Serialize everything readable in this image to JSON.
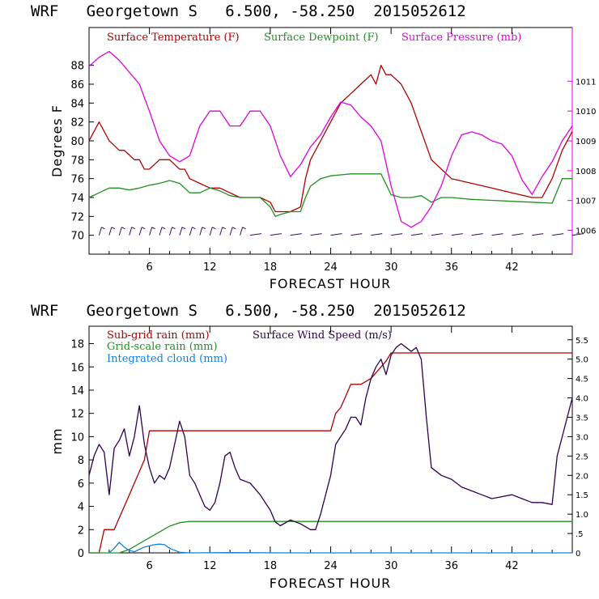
{
  "chart_data": [
    {
      "type": "line",
      "title": "WRF   Georgetown S   6.500, -58.250  2015052612",
      "xlabel": "FORECAST HOUR",
      "ylabel": "Degrees F",
      "xlim": [
        0,
        48
      ],
      "ylim": [
        68,
        92
      ],
      "y2lim": [
        1005.2,
        1012.8
      ],
      "x_ticks": [
        6,
        12,
        18,
        24,
        30,
        36,
        42
      ],
      "y_ticks": [
        70,
        72,
        74,
        76,
        78,
        80,
        82,
        84,
        86,
        88
      ],
      "y2_ticks": [
        1006,
        1007,
        1008,
        1009,
        1010,
        1011
      ],
      "legend_placement": "top",
      "series": [
        {
          "name": "Surface Temperature (F)",
          "color": "#b00000",
          "axis": "left",
          "x": [
            0,
            0.5,
            1,
            1.5,
            2,
            2.5,
            3,
            3.5,
            4,
            4.5,
            5,
            5.5,
            6,
            6.5,
            7,
            7.5,
            8,
            8.5,
            9,
            9.5,
            10,
            11,
            12,
            13,
            14,
            15,
            16,
            17,
            18,
            18.5,
            19,
            20,
            21,
            21.5,
            22,
            23,
            24,
            25,
            26,
            27,
            28,
            28.5,
            29,
            29.5,
            30,
            31,
            32,
            33,
            34,
            35,
            36,
            38,
            40,
            42,
            44,
            45,
            46,
            47,
            48
          ],
          "values": [
            80,
            81,
            82,
            81,
            80,
            79.5,
            79,
            79,
            78.5,
            78,
            78,
            77,
            77,
            77.5,
            78,
            78,
            78,
            77.5,
            77,
            77,
            76,
            75.5,
            75,
            75,
            74.5,
            74,
            74,
            74,
            73.5,
            72.5,
            72.5,
            72.5,
            73,
            76,
            78,
            80,
            82,
            84,
            85,
            86,
            87,
            86,
            88,
            87,
            87,
            86,
            84,
            81,
            78,
            77,
            76,
            75.5,
            75,
            74.5,
            74,
            74,
            76,
            79,
            81
          ]
        },
        {
          "name": "Surface Dewpoint (F)",
          "color": "#209020",
          "axis": "left",
          "x": [
            0,
            1,
            2,
            3,
            4,
            5,
            6,
            7,
            8,
            9,
            10,
            11,
            12,
            13,
            14,
            15,
            16,
            17,
            18,
            18.5,
            19,
            20,
            21,
            21.5,
            22,
            23,
            24,
            25,
            26,
            27,
            28,
            29,
            30,
            31,
            32,
            33,
            34,
            35,
            36,
            38,
            40,
            42,
            44,
            46,
            47,
            48
          ],
          "values": [
            74,
            74.5,
            75,
            75,
            74.8,
            75,
            75.3,
            75.5,
            75.8,
            75.5,
            74.5,
            74.5,
            75,
            74.7,
            74.2,
            74,
            74,
            74,
            73,
            72,
            72.2,
            72.5,
            72.5,
            74,
            75.2,
            76,
            76.3,
            76.4,
            76.5,
            76.5,
            76.5,
            76.5,
            74.3,
            74,
            74,
            74.2,
            73.5,
            74,
            74,
            73.8,
            73.7,
            73.6,
            73.5,
            73.4,
            76,
            76
          ]
        },
        {
          "name": "Surface Pressure (mb)",
          "color": "#e000e0",
          "axis": "right",
          "x": [
            0,
            1,
            2,
            3,
            4,
            5,
            6,
            7,
            8,
            9,
            10,
            11,
            12,
            13,
            14,
            15,
            16,
            17,
            18,
            19,
            20,
            21,
            22,
            23,
            24,
            25,
            26,
            27,
            28,
            29,
            30,
            31,
            32,
            33,
            34,
            35,
            36,
            37,
            38,
            39,
            40,
            41,
            42,
            43,
            44,
            45,
            46,
            47,
            48
          ],
          "values": [
            1011.5,
            1011.8,
            1012,
            1011.7,
            1011.3,
            1010.9,
            1010,
            1009,
            1008.5,
            1008.3,
            1008.5,
            1009.5,
            1010,
            1010,
            1009.5,
            1009.5,
            1010,
            1010,
            1009.5,
            1008.5,
            1007.8,
            1008.2,
            1008.8,
            1009.2,
            1009.8,
            1010.3,
            1010.2,
            1009.8,
            1009.5,
            1009,
            1007.5,
            1006.3,
            1006.1,
            1006.3,
            1006.8,
            1007.5,
            1008.5,
            1009.2,
            1009.3,
            1009.2,
            1009,
            1008.9,
            1008.5,
            1007.7,
            1007.2,
            1007.8,
            1008.3,
            1009,
            1009.5
          ]
        },
        {
          "name": "wind barbs",
          "color": "#3a0a5a",
          "axis": "left",
          "x": [
            1,
            2,
            3,
            4,
            5,
            6,
            7,
            8,
            9,
            10,
            11,
            12,
            13,
            14,
            15,
            16,
            18,
            20,
            22,
            24,
            26,
            28,
            30,
            32,
            34,
            36,
            38,
            40,
            42,
            44,
            46,
            48
          ],
          "values": [
            70,
            70,
            70,
            70,
            70,
            70,
            70,
            70,
            70,
            70,
            70,
            70,
            70,
            70,
            70,
            70,
            70,
            70,
            70,
            70,
            70,
            70,
            70,
            70,
            70,
            70,
            70,
            70,
            70,
            70,
            70,
            70
          ]
        }
      ]
    },
    {
      "type": "line",
      "title": "WRF   Georgetown S   6.500, -58.250  2015052612",
      "xlabel": "FORECAST HOUR",
      "ylabel": "mm",
      "xlim": [
        0,
        48
      ],
      "ylim": [
        0,
        19.5
      ],
      "y2lim": [
        0,
        5.85
      ],
      "x_ticks": [
        6,
        12,
        18,
        24,
        30,
        36,
        42
      ],
      "y_ticks": [
        0,
        2,
        4,
        6,
        8,
        10,
        12,
        14,
        16,
        18
      ],
      "y2_ticks": [
        0,
        0.5,
        1.0,
        1.5,
        2.0,
        2.5,
        3.0,
        3.5,
        4.0,
        4.5,
        5.0,
        5.5
      ],
      "y2_tick_labels": [
        "0",
        ".5",
        "1.0",
        "1.5",
        "2.0",
        "2.5",
        "3.0",
        "3.5",
        "4.0",
        "4.5",
        "5.0",
        "5.5"
      ],
      "legend_placement": "top-left",
      "series": [
        {
          "name": "Sub-grid rain (mm)",
          "color": "#b00000",
          "axis": "left",
          "x": [
            0,
            1,
            1.5,
            2.5,
            3,
            3.5,
            4,
            4.5,
            5,
            5.5,
            6,
            24,
            24.5,
            25,
            25.5,
            26,
            27,
            28,
            28.5,
            29,
            29.5,
            30,
            48
          ],
          "values": [
            0,
            0,
            2,
            2,
            3,
            4,
            5,
            6,
            7,
            8,
            10.5,
            10.5,
            12,
            12.5,
            13.5,
            14.5,
            14.5,
            15,
            15.5,
            16,
            16.5,
            17.2,
            17.2
          ]
        },
        {
          "name": "Grid-scale rain (mm)",
          "color": "#209020",
          "axis": "left",
          "x": [
            0,
            3,
            4,
            5,
            6,
            7,
            8,
            9,
            10,
            12,
            48
          ],
          "values": [
            0,
            0,
            0.3,
            0.8,
            1.3,
            1.8,
            2.3,
            2.6,
            2.7,
            2.7,
            2.7
          ]
        },
        {
          "name": "Integrated cloud (mm)",
          "color": "#1080e0",
          "axis": "left",
          "x": [
            2,
            2.5,
            3,
            3.5,
            4,
            4.5,
            5,
            5.5,
            6,
            6.5,
            7,
            7.5,
            8,
            9,
            10,
            14,
            20,
            48
          ],
          "values": [
            0,
            0.4,
            0.9,
            0.5,
            0.2,
            0.1,
            0.3,
            0.5,
            0.6,
            0.7,
            0.75,
            0.7,
            0.4,
            0.05,
            0,
            0.02,
            0,
            0
          ]
        },
        {
          "name": "Surface Wind Speed (m/s)",
          "color": "#300050",
          "axis": "right",
          "x": [
            0,
            0.5,
            1,
            1.5,
            2,
            2.5,
            3,
            3.5,
            4,
            4.5,
            5,
            5.5,
            6,
            6.5,
            7,
            7.5,
            8,
            8.5,
            9,
            9.5,
            10,
            10.5,
            11,
            11.5,
            12,
            12.5,
            13,
            13.5,
            14,
            14.5,
            15,
            16,
            17,
            18,
            18.5,
            19,
            20,
            21,
            22,
            22.5,
            23,
            23.5,
            24,
            24.5,
            25,
            25.5,
            26,
            26.5,
            27,
            27.5,
            28,
            28.5,
            29,
            29.5,
            30,
            30.5,
            31,
            31.5,
            32,
            32.5,
            33,
            33.5,
            34,
            35,
            36,
            37,
            38,
            39,
            40,
            41,
            42,
            43,
            44,
            45,
            46,
            46.5,
            47,
            47.5,
            48
          ],
          "values": [
            2,
            2.5,
            2.8,
            2.6,
            1.5,
            2.7,
            2.9,
            3.2,
            2.5,
            3,
            3.8,
            2.8,
            2.2,
            1.8,
            2,
            1.9,
            2.2,
            2.8,
            3.4,
            3,
            2,
            1.8,
            1.5,
            1.2,
            1.1,
            1.3,
            1.8,
            2.5,
            2.6,
            2.2,
            1.9,
            1.8,
            1.5,
            1.1,
            0.8,
            0.7,
            0.85,
            0.75,
            0.6,
            0.6,
            1,
            1.5,
            2,
            2.8,
            3,
            3.2,
            3.5,
            3.5,
            3.3,
            4,
            4.5,
            4.8,
            5,
            4.6,
            5.1,
            5.3,
            5.4,
            5.3,
            5.2,
            5.3,
            5,
            3.5,
            2.2,
            2,
            1.9,
            1.7,
            1.6,
            1.5,
            1.4,
            1.45,
            1.5,
            1.4,
            1.3,
            1.3,
            1.25,
            2.5,
            3,
            3.5,
            4
          ]
        }
      ]
    }
  ]
}
